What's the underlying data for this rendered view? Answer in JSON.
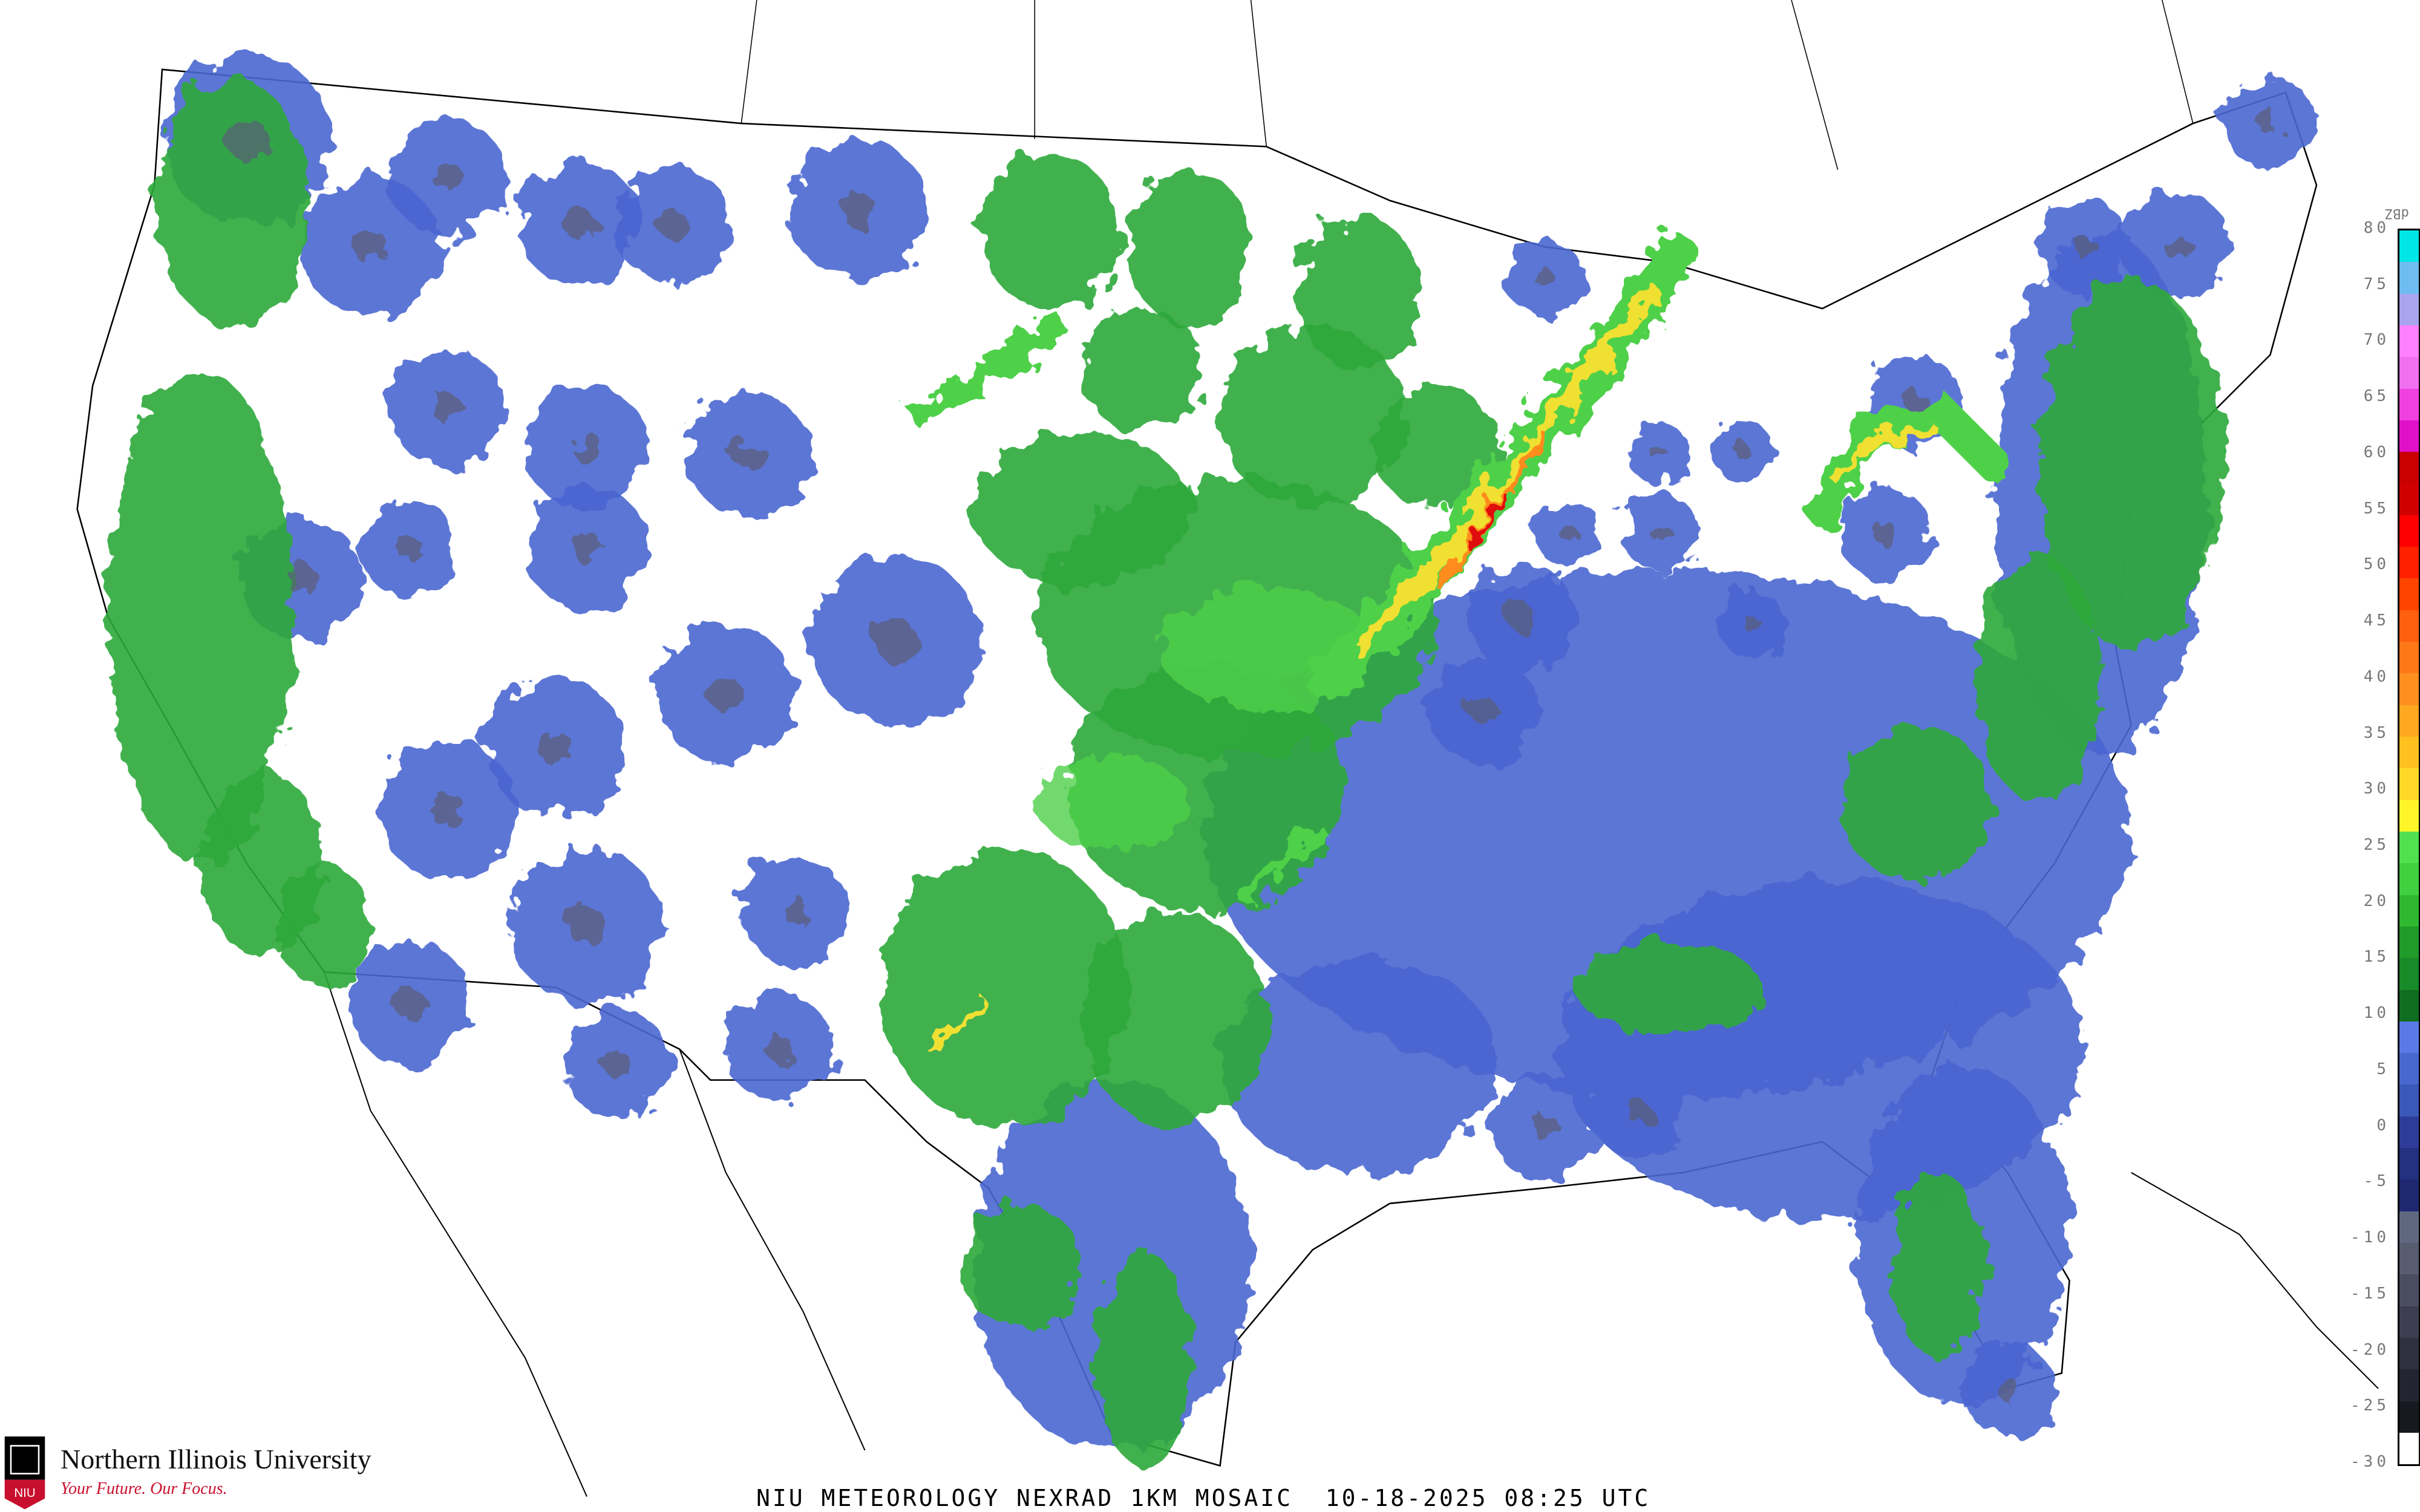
{
  "title": "NIU METEOROLOGY NEXRAD 1KM MOSAIC  10-18-2025 08:25 UTC",
  "logo": {
    "name": "Northern Illinois University",
    "tagline": "Your Future. Our Focus.",
    "emblem_text": "NIU",
    "colors": {
      "red": "#c8102e",
      "black": "#000000"
    }
  },
  "legend": {
    "unit": "dBZ",
    "ticks": [
      "80",
      "75",
      "70",
      "65",
      "60",
      "55",
      "50",
      "45",
      "40",
      "35",
      "30",
      "25",
      "20",
      "15",
      "10",
      "5",
      "0",
      "-5",
      "-10",
      "-15",
      "-20",
      "-25",
      "-30"
    ],
    "colors": [
      "#00e5e5",
      "#6ebcf0",
      "#a9a4ee",
      "#ff80ff",
      "#f070f0",
      "#f040e0",
      "#e010c8",
      "#c80000",
      "#d00000",
      "#ff0000",
      "#ff2000",
      "#ff4400",
      "#ff6010",
      "#ff7818",
      "#ff9020",
      "#ffa820",
      "#ffc020",
      "#ffd828",
      "#fff528",
      "#50e050",
      "#40d040",
      "#30b830",
      "#209a28",
      "#188a28",
      "#106e20",
      "#5a7ae8",
      "#4868d0",
      "#3a58b8",
      "#2e3c98",
      "#243080",
      "#1e2870",
      "#606880",
      "#585c70",
      "#4a4c60",
      "#3e3e50",
      "#303040",
      "#242430",
      "#181820",
      "#ffffff"
    ]
  },
  "echo_colors": {
    "blue": "#4a66d0",
    "green": "#2fa83a",
    "light_green": "#4fd04a",
    "yellow": "#f0e030",
    "orange": "#ff8c1a",
    "red": "#e01010",
    "gray": "#5a5f78"
  }
}
